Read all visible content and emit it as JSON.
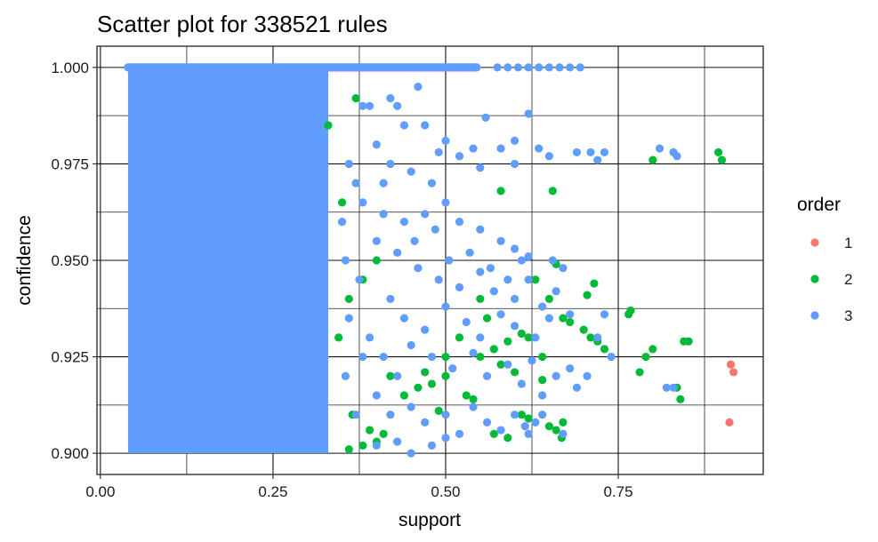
{
  "chart_data": {
    "type": "scatter",
    "title": "Scatter plot for 338521 rules",
    "xlabel": "support",
    "ylabel": "confidence",
    "xlim": [
      -0.005,
      0.96
    ],
    "ylim": [
      0.8945,
      1.0055
    ],
    "x_ticks": [
      0.0,
      0.25,
      0.5,
      0.75
    ],
    "x_tick_labels": [
      "0.00",
      "0.25",
      "0.50",
      "0.75"
    ],
    "y_ticks": [
      0.9,
      0.925,
      0.95,
      0.975,
      1.0
    ],
    "y_tick_labels": [
      "0.900",
      "0.925",
      "0.950",
      "0.975",
      "1.000"
    ],
    "grid": true,
    "legend": {
      "title": "order",
      "placement": "right",
      "entries": [
        {
          "label": "1",
          "color": "#F8766D"
        },
        {
          "label": "2",
          "color": "#00BA38"
        },
        {
          "label": "3",
          "color": "#619CFF"
        }
      ]
    },
    "series": [
      {
        "name": "1",
        "color": "#F8766D",
        "points": [
          [
            0.913,
            0.923
          ],
          [
            0.917,
            0.921
          ],
          [
            0.911,
            0.908
          ]
        ]
      },
      {
        "name": "2",
        "color": "#00BA38",
        "points": [
          [
            0.895,
            0.978
          ],
          [
            0.9,
            0.976
          ],
          [
            0.8,
            0.976
          ],
          [
            0.655,
            0.968
          ],
          [
            0.58,
            0.968
          ],
          [
            0.66,
            0.949
          ],
          [
            0.715,
            0.944
          ],
          [
            0.705,
            0.941
          ],
          [
            0.765,
            0.936
          ],
          [
            0.768,
            0.937
          ],
          [
            0.67,
            0.935
          ],
          [
            0.68,
            0.934
          ],
          [
            0.7,
            0.932
          ],
          [
            0.71,
            0.93
          ],
          [
            0.845,
            0.929
          ],
          [
            0.852,
            0.929
          ],
          [
            0.72,
            0.929
          ],
          [
            0.8,
            0.927
          ],
          [
            0.73,
            0.927
          ],
          [
            0.79,
            0.925
          ],
          [
            0.61,
            0.931
          ],
          [
            0.62,
            0.93
          ],
          [
            0.59,
            0.929
          ],
          [
            0.57,
            0.927
          ],
          [
            0.55,
            0.925
          ],
          [
            0.58,
            0.923
          ],
          [
            0.6,
            0.921
          ],
          [
            0.781,
            0.921
          ],
          [
            0.64,
            0.919
          ],
          [
            0.5,
            0.92
          ],
          [
            0.48,
            0.918
          ],
          [
            0.46,
            0.917
          ],
          [
            0.53,
            0.915
          ],
          [
            0.54,
            0.914
          ],
          [
            0.84,
            0.914
          ],
          [
            0.835,
            0.917
          ],
          [
            0.49,
            0.911
          ],
          [
            0.61,
            0.91
          ],
          [
            0.62,
            0.909
          ],
          [
            0.65,
            0.907
          ],
          [
            0.66,
            0.906
          ],
          [
            0.57,
            0.905
          ],
          [
            0.59,
            0.904
          ],
          [
            0.668,
            0.904
          ],
          [
            0.67,
            0.908
          ],
          [
            0.41,
            0.905
          ],
          [
            0.4,
            0.903
          ],
          [
            0.38,
            0.902
          ],
          [
            0.36,
            0.901
          ],
          [
            0.39,
            0.906
          ],
          [
            0.42,
            0.92
          ],
          [
            0.44,
            0.915
          ],
          [
            0.47,
            0.921
          ],
          [
            0.5,
            0.925
          ],
          [
            0.52,
            0.93
          ],
          [
            0.35,
            0.965
          ],
          [
            0.33,
            0.985
          ],
          [
            0.37,
            0.992
          ],
          [
            0.36,
            0.94
          ],
          [
            0.38,
            0.945
          ],
          [
            0.4,
            0.95
          ],
          [
            0.345,
            0.93
          ],
          [
            0.365,
            0.91
          ],
          [
            0.55,
            0.94
          ],
          [
            0.56,
            0.935
          ],
          [
            0.63,
            0.945
          ],
          [
            0.65,
            0.94
          ],
          [
            0.64,
            0.925
          ]
        ]
      },
      {
        "name": "3",
        "color": "#619CFF",
        "dense_region": {
          "x_min": 0.04,
          "x_max": 0.33,
          "y_min": 0.9,
          "y_max": 1.0
        },
        "top_band": {
          "x_min": 0.04,
          "x_max": 0.545,
          "y": 1.0
        },
        "points": [
          [
            0.575,
            1.0
          ],
          [
            0.59,
            1.0
          ],
          [
            0.605,
            1.0
          ],
          [
            0.62,
            1.0
          ],
          [
            0.635,
            1.0
          ],
          [
            0.65,
            1.0
          ],
          [
            0.665,
            1.0
          ],
          [
            0.68,
            1.0
          ],
          [
            0.695,
            1.0
          ],
          [
            0.558,
            0.987
          ],
          [
            0.62,
            0.988
          ],
          [
            0.46,
            0.995
          ],
          [
            0.42,
            0.992
          ],
          [
            0.38,
            0.99
          ],
          [
            0.44,
            0.985
          ],
          [
            0.4,
            0.98
          ],
          [
            0.5,
            0.981
          ],
          [
            0.54,
            0.979
          ],
          [
            0.58,
            0.979
          ],
          [
            0.6,
            0.981
          ],
          [
            0.635,
            0.979
          ],
          [
            0.65,
            0.977
          ],
          [
            0.69,
            0.978
          ],
          [
            0.71,
            0.978
          ],
          [
            0.72,
            0.976
          ],
          [
            0.73,
            0.978
          ],
          [
            0.81,
            0.979
          ],
          [
            0.83,
            0.978
          ],
          [
            0.835,
            0.977
          ],
          [
            0.42,
            0.975
          ],
          [
            0.45,
            0.973
          ],
          [
            0.48,
            0.97
          ],
          [
            0.52,
            0.977
          ],
          [
            0.55,
            0.974
          ],
          [
            0.6,
            0.975
          ],
          [
            0.38,
            0.965
          ],
          [
            0.41,
            0.962
          ],
          [
            0.44,
            0.96
          ],
          [
            0.47,
            0.962
          ],
          [
            0.5,
            0.965
          ],
          [
            0.52,
            0.96
          ],
          [
            0.55,
            0.958
          ],
          [
            0.58,
            0.955
          ],
          [
            0.6,
            0.953
          ],
          [
            0.62,
            0.951
          ],
          [
            0.4,
            0.955
          ],
          [
            0.43,
            0.952
          ],
          [
            0.46,
            0.948
          ],
          [
            0.49,
            0.945
          ],
          [
            0.52,
            0.943
          ],
          [
            0.55,
            0.947
          ],
          [
            0.57,
            0.942
          ],
          [
            0.6,
            0.94
          ],
          [
            0.62,
            0.945
          ],
          [
            0.64,
            0.938
          ],
          [
            0.66,
            0.942
          ],
          [
            0.68,
            0.936
          ],
          [
            0.73,
            0.936
          ],
          [
            0.72,
            0.93
          ],
          [
            0.74,
            0.925
          ],
          [
            0.42,
            0.94
          ],
          [
            0.44,
            0.935
          ],
          [
            0.47,
            0.932
          ],
          [
            0.5,
            0.938
          ],
          [
            0.53,
            0.934
          ],
          [
            0.55,
            0.93
          ],
          [
            0.58,
            0.936
          ],
          [
            0.6,
            0.933
          ],
          [
            0.63,
            0.93
          ],
          [
            0.65,
            0.935
          ],
          [
            0.39,
            0.93
          ],
          [
            0.41,
            0.925
          ],
          [
            0.43,
            0.92
          ],
          [
            0.45,
            0.928
          ],
          [
            0.48,
            0.925
          ],
          [
            0.51,
            0.922
          ],
          [
            0.54,
            0.926
          ],
          [
            0.56,
            0.92
          ],
          [
            0.59,
            0.923
          ],
          [
            0.61,
            0.918
          ],
          [
            0.625,
            0.924
          ],
          [
            0.64,
            0.915
          ],
          [
            0.66,
            0.92
          ],
          [
            0.68,
            0.922
          ],
          [
            0.69,
            0.917
          ],
          [
            0.705,
            0.92
          ],
          [
            0.82,
            0.917
          ],
          [
            0.83,
            0.917
          ],
          [
            0.4,
            0.915
          ],
          [
            0.42,
            0.91
          ],
          [
            0.45,
            0.912
          ],
          [
            0.47,
            0.908
          ],
          [
            0.5,
            0.91
          ],
          [
            0.52,
            0.905
          ],
          [
            0.54,
            0.912
          ],
          [
            0.56,
            0.908
          ],
          [
            0.58,
            0.906
          ],
          [
            0.6,
            0.91
          ],
          [
            0.615,
            0.907
          ],
          [
            0.62,
            0.905
          ],
          [
            0.63,
            0.908
          ],
          [
            0.64,
            0.91
          ],
          [
            0.67,
            0.905
          ],
          [
            0.4,
            0.902
          ],
          [
            0.43,
            0.903
          ],
          [
            0.45,
            0.9
          ],
          [
            0.48,
            0.902
          ],
          [
            0.5,
            0.904
          ],
          [
            0.36,
            0.975
          ],
          [
            0.35,
            0.96
          ],
          [
            0.355,
            0.95
          ],
          [
            0.36,
            0.935
          ],
          [
            0.355,
            0.92
          ],
          [
            0.37,
            0.97
          ],
          [
            0.375,
            0.945
          ],
          [
            0.38,
            0.925
          ],
          [
            0.37,
            0.91
          ],
          [
            0.39,
            0.99
          ],
          [
            0.41,
            0.97
          ],
          [
            0.43,
            0.99
          ],
          [
            0.47,
            0.985
          ],
          [
            0.49,
            0.978
          ],
          [
            0.455,
            0.955
          ],
          [
            0.485,
            0.958
          ],
          [
            0.505,
            0.95
          ],
          [
            0.535,
            0.952
          ],
          [
            0.565,
            0.948
          ],
          [
            0.59,
            0.945
          ],
          [
            0.61,
            0.95
          ],
          [
            0.655,
            0.95
          ],
          [
            0.67,
            0.948
          ]
        ]
      }
    ]
  }
}
